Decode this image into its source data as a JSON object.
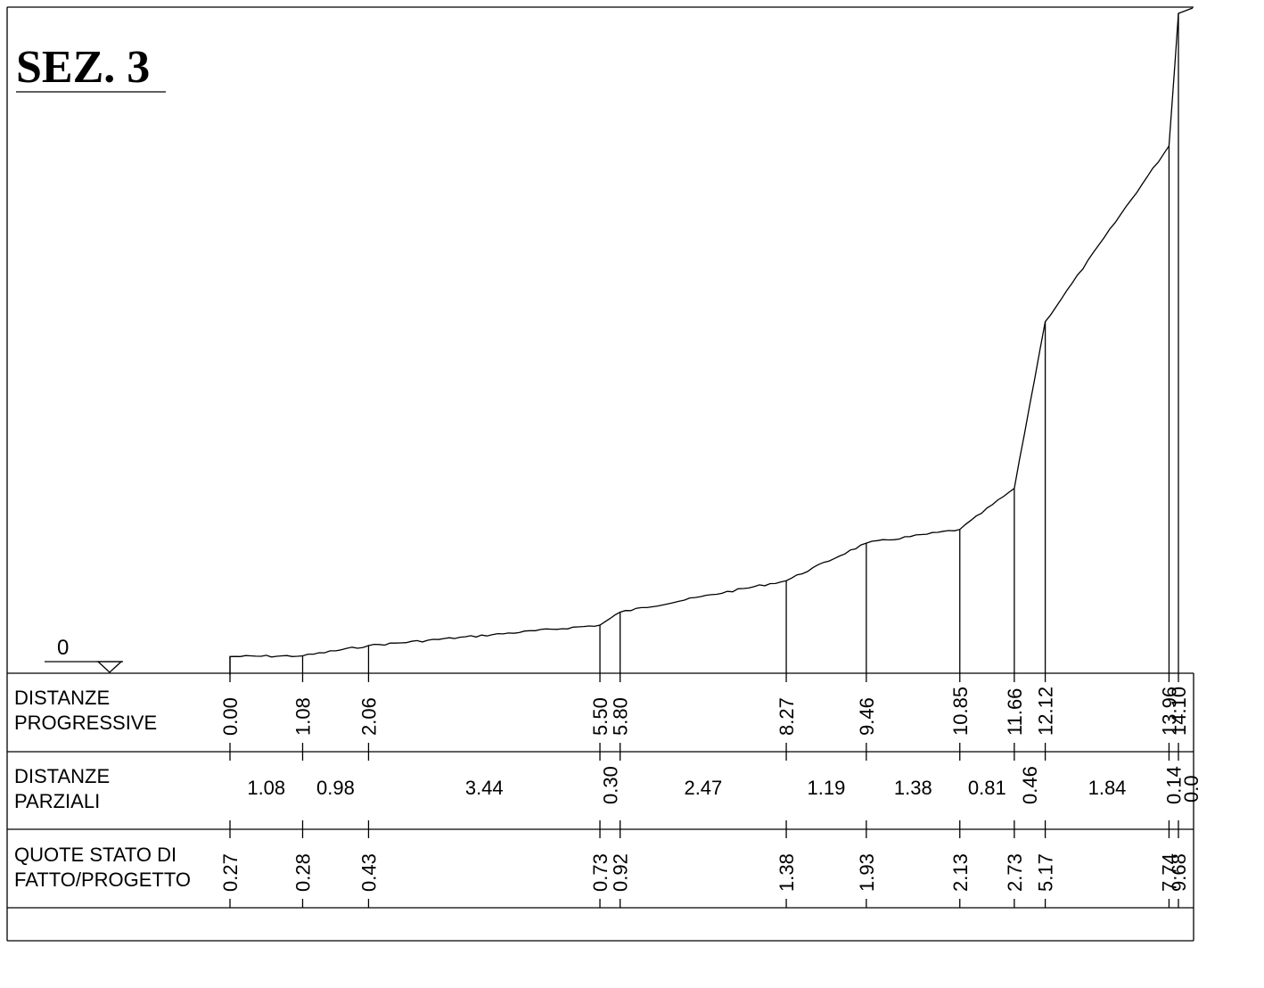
{
  "title": "SEZ. 3",
  "reference_level": "0",
  "table": {
    "rows": [
      {
        "line1": "DISTANZE",
        "line2": "PROGRESSIVE"
      },
      {
        "line1": "DISTANZE",
        "line2": "PARZIALI"
      },
      {
        "line1": "QUOTE STATO DI",
        "line2": "FATTO/PROGETTO"
      }
    ]
  },
  "chart_data": {
    "type": "line",
    "title": "SEZ. 3",
    "xlabel": "",
    "ylabel": "",
    "progressive_distances": [
      "0.00",
      "1.08",
      "2.06",
      "5.50",
      "5.80",
      "8.27",
      "9.46",
      "10.85",
      "11.66",
      "12.12",
      "13.96",
      "14.10"
    ],
    "partial_distances": [
      "1.08",
      "0.98",
      "3.44",
      "0.30",
      "2.47",
      "1.19",
      "1.38",
      "0.81",
      "0.46",
      "1.84",
      "0.14"
    ],
    "elevations": [
      "0.27",
      "0.28",
      "0.43",
      "0.73",
      "0.92",
      "1.38",
      "1.93",
      "2.13",
      "2.73",
      "5.17",
      "7.74",
      "9.68"
    ],
    "series": [
      {
        "x": [
          0.0,
          1.08,
          2.06,
          5.5,
          5.8,
          8.27,
          9.46,
          10.85,
          11.66,
          12.12,
          13.96,
          14.1
        ],
        "y": [
          0.27,
          0.28,
          0.43,
          0.73,
          0.92,
          1.38,
          1.93,
          2.13,
          2.73,
          5.17,
          7.74,
          9.68
        ]
      }
    ],
    "extra_truncated_label": "0.0"
  }
}
